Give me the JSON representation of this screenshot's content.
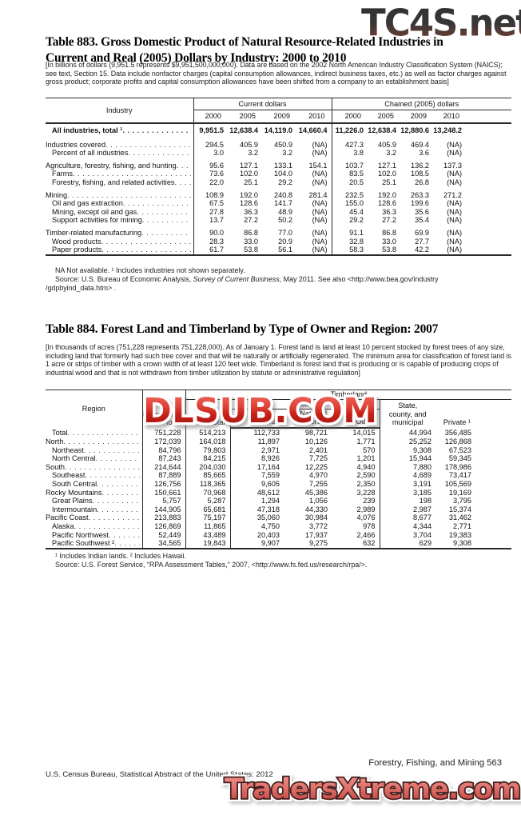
{
  "watermarks": {
    "top": "TC4S.net",
    "middle": "DLSUB.COM",
    "bottom": "TradersXtreme.com"
  },
  "table883": {
    "title": "Table 883. Gross Domestic Product of Natural Resource-Related Industries in Current and Real (2005) Dollars by Industry: 2000 to 2010",
    "note": "[In billions of dollars (9,951.5 represents $9,951,500,000,000). Data are based on the 2002 North American Industry Classification System (NAICS); see text, Section 15. Data include nonfactor charges (capital consumption allowances, indirect business taxes, etc.) as well as factor charges against gross product; corporate profits and capital consumption allowances have been shifted from a company to an establishment basis]",
    "header": {
      "industry": "Industry",
      "group1": "Current dollars",
      "group2": "Chained (2005) dollars",
      "years": [
        "2000",
        "2005",
        "2009",
        "2010"
      ]
    },
    "rows": [
      {
        "label": "All industries, total ¹",
        "indent": 1,
        "bold": true,
        "gap": false,
        "values": [
          "9,951.5",
          "12,638.4",
          "14,119.0",
          "14,660.4",
          "11,226.0",
          "12,638.4",
          "12,880.6",
          "13,248.2"
        ]
      },
      {
        "label": "Industries covered",
        "indent": 0,
        "bold": false,
        "gap": true,
        "values": [
          "294.5",
          "405.9",
          "450.9",
          "(NA)",
          "427.3",
          "405.9",
          "469.4",
          "(NA)"
        ]
      },
      {
        "label": "Percent of all industries",
        "indent": 1,
        "bold": false,
        "gap": false,
        "values": [
          "3.0",
          "3.2",
          "3.2",
          "(NA)",
          "3.8",
          "3.2",
          "3.6",
          "(NA)"
        ]
      },
      {
        "label": "Agriculture, forestry, fishing, and hunting",
        "indent": 0,
        "bold": false,
        "gap": true,
        "values": [
          "95.6",
          "127.1",
          "133.1",
          "154.1",
          "103.7",
          "127.1",
          "136.2",
          "137.3"
        ]
      },
      {
        "label": "Farms",
        "indent": 1,
        "bold": false,
        "gap": false,
        "values": [
          "73.6",
          "102.0",
          "104.0",
          "(NA)",
          "83.5",
          "102.0",
          "108.5",
          "(NA)"
        ]
      },
      {
        "label": "Forestry, fishing, and related activities",
        "indent": 1,
        "bold": false,
        "gap": false,
        "values": [
          "22.0",
          "25.1",
          "29.2",
          "(NA)",
          "20.5",
          "25.1",
          "26.8",
          "(NA)"
        ]
      },
      {
        "label": "Mining",
        "indent": 0,
        "bold": false,
        "gap": true,
        "values": [
          "108.9",
          "192.0",
          "240.8",
          "281.4",
          "232.5",
          "192.0",
          "263.3",
          "271.2"
        ]
      },
      {
        "label": "Oil and gas extraction",
        "indent": 1,
        "bold": false,
        "gap": false,
        "values": [
          "67.5",
          "128.6",
          "141.7",
          "(NA)",
          "155.0",
          "128.6",
          "199.6",
          "(NA)"
        ]
      },
      {
        "label": "Mining, except oil and gas",
        "indent": 1,
        "bold": false,
        "gap": false,
        "values": [
          "27.8",
          "36.3",
          "48.9",
          "(NA)",
          "45.4",
          "36.3",
          "35.6",
          "(NA)"
        ]
      },
      {
        "label": "Support activities for mining",
        "indent": 1,
        "bold": false,
        "gap": false,
        "values": [
          "13.7",
          "27.2",
          "50.2",
          "(NA)",
          "29.2",
          "27.2",
          "35.4",
          "(NA)"
        ]
      },
      {
        "label": "Timber-related manufacturing",
        "indent": 0,
        "bold": false,
        "gap": true,
        "values": [
          "90.0",
          "86.8",
          "77.0",
          "(NA)",
          "91.1",
          "86.8",
          "69.9",
          "(NA)"
        ]
      },
      {
        "label": "Wood products",
        "indent": 1,
        "bold": false,
        "gap": false,
        "values": [
          "28.3",
          "33.0",
          "20.9",
          "(NA)",
          "32.8",
          "33.0",
          "27.7",
          "(NA)"
        ]
      },
      {
        "label": "Paper products",
        "indent": 1,
        "bold": false,
        "gap": false,
        "values": [
          "61.7",
          "53.8",
          "56.1",
          "(NA)",
          "58.3",
          "53.8",
          "42.2",
          "(NA)"
        ]
      }
    ],
    "footnote1": "NA Not available. ¹ Includes industries not shown separately.",
    "source_prefix": "Source: U.S. Bureau of Economic Analysis, ",
    "source_italic": "Survey of Current Business",
    "source_suffix": ", May 2011. See also <http://www.bea.gov/industry",
    "source_line2": "/gdpbyind_data.htm> ."
  },
  "table884": {
    "title": "Table 884. Forest Land and Timberland by Type of Owner and Region: 2007",
    "note": "[In thousands of acres (751,228 represents 751,228,000). As of January 1. Forest land is land at least 10 percent stocked by forest trees of any size, including land that formerly had such tree cover and that will be naturally or artificially regenerated. The minimum area for classification of forest land is 1 acre or strips of timber with a crown width of at least 120 feet wide. Timberland is forest land that is producing or is capable of producing crops of industrial wood and that is not withdrawn from timber utilization by statute or administrative regulation]",
    "header": {
      "region": "Region",
      "forest_land_line1": "Forest land,",
      "forest_land_line2": "total",
      "timberland": "Timberland",
      "timberland_total": "Total",
      "federal": "Federal",
      "federal_total": "Total",
      "national_forest_line1": "National",
      "national_forest_line2": "forest",
      "other": "Other",
      "state_line1": "State,",
      "state_line2": "county, and",
      "state_line3": "municipal",
      "private": "Private ¹"
    },
    "rows": [
      {
        "label": "Total",
        "indent": 1,
        "values": [
          "751,228",
          "514,213",
          "112,733",
          "98,721",
          "14,015",
          "44,994",
          "356,485"
        ]
      },
      {
        "label": "North",
        "indent": 0,
        "values": [
          "172,039",
          "164,018",
          "11,897",
          "10,126",
          "1,771",
          "25,252",
          "126,868"
        ]
      },
      {
        "label": "Northeast",
        "indent": 1,
        "values": [
          "84,796",
          "79,803",
          "2,971",
          "2,401",
          "570",
          "9,308",
          "67,523"
        ]
      },
      {
        "label": "North Central",
        "indent": 1,
        "values": [
          "87,243",
          "84,215",
          "8,926",
          "7,725",
          "1,201",
          "15,944",
          "59,345"
        ]
      },
      {
        "label": "South",
        "indent": 0,
        "values": [
          "214,644",
          "204,030",
          "17,164",
          "12,225",
          "4,940",
          "7,880",
          "178,986"
        ]
      },
      {
        "label": "Southeast",
        "indent": 1,
        "values": [
          "87,889",
          "85,665",
          "7,559",
          "4,970",
          "2,590",
          "4,689",
          "73,417"
        ]
      },
      {
        "label": "South Central",
        "indent": 1,
        "values": [
          "126,756",
          "118,365",
          "9,605",
          "7,255",
          "2,350",
          "3,191",
          "105,569"
        ]
      },
      {
        "label": "Rocky Mountains",
        "indent": 0,
        "values": [
          "150,661",
          "70,968",
          "48,612",
          "45,386",
          "3,228",
          "3,185",
          "19,169"
        ]
      },
      {
        "label": "Great Plains",
        "indent": 1,
        "values": [
          "5,757",
          "5,287",
          "1,294",
          "1,056",
          "239",
          "198",
          "3,795"
        ]
      },
      {
        "label": "Intermountain",
        "indent": 1,
        "values": [
          "144,905",
          "65,681",
          "47,318",
          "44,330",
          "2,989",
          "2,987",
          "15,374"
        ]
      },
      {
        "label": "Pacific Coast",
        "indent": 0,
        "values": [
          "213,883",
          "75,197",
          "35,060",
          "30,984",
          "4,076",
          "8,677",
          "31,462"
        ]
      },
      {
        "label": "Alaska",
        "indent": 1,
        "values": [
          "126,869",
          "11,865",
          "4,750",
          "3,772",
          "978",
          "4,344",
          "2,771"
        ]
      },
      {
        "label": "Pacific Northwest",
        "indent": 1,
        "values": [
          "52,449",
          "43,489",
          "20,403",
          "17,937",
          "2,466",
          "3,704",
          "19,383"
        ]
      },
      {
        "label": "Pacific Southwest ²",
        "indent": 1,
        "values": [
          "34,565",
          "19,843",
          "9,907",
          "9,275",
          "632",
          "629",
          "9,308"
        ]
      }
    ],
    "footnote1": "¹ Includes Indian lands. ² Includes Hawaii.",
    "source": "Source: U.S. Forest Service, “RPA Assessment Tables,” 2007, <http://www.fs.fed.us/research/rpa/>."
  },
  "footer": {
    "left": "U.S. Census Bureau, Statistical Abstract of the United States: 2012",
    "right": "Forestry, Fishing, and Mining  563"
  }
}
